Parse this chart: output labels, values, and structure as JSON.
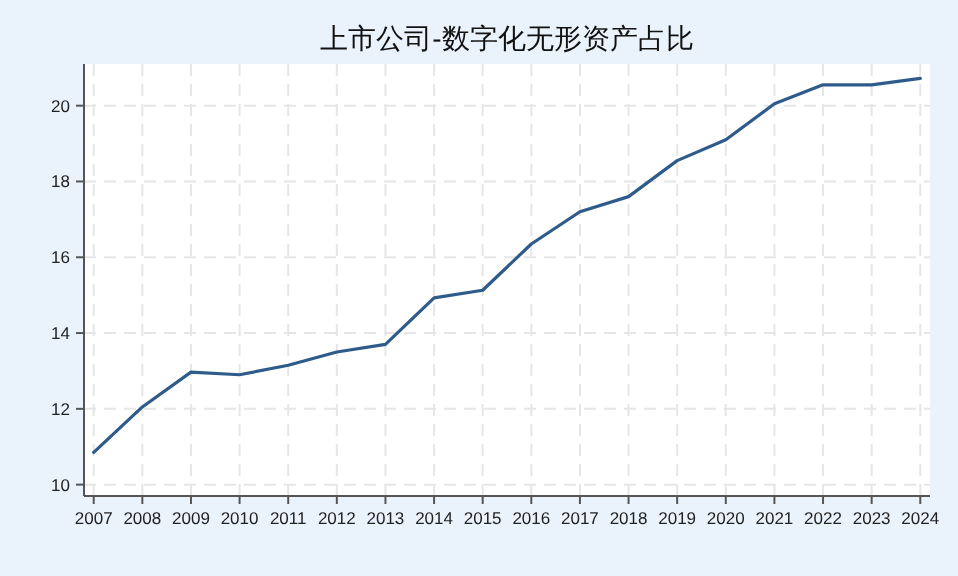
{
  "chart_data": {
    "type": "line",
    "title": "上市公司-数字化无形资产占比",
    "x": [
      2007,
      2008,
      2009,
      2010,
      2011,
      2012,
      2013,
      2014,
      2015,
      2016,
      2017,
      2018,
      2019,
      2020,
      2021,
      2022,
      2023,
      2024
    ],
    "series": [
      {
        "color": "#2e5b8a",
        "values": [
          10.85,
          12.05,
          12.97,
          12.9,
          13.15,
          13.5,
          13.7,
          14.93,
          15.13,
          16.35,
          17.2,
          17.6,
          18.55,
          19.1,
          20.05,
          20.55,
          20.55,
          20.72
        ]
      }
    ],
    "xlim": [
      2006.8,
      2024.2
    ],
    "xticks": [
      2007,
      2008,
      2009,
      2010,
      2011,
      2012,
      2013,
      2014,
      2015,
      2016,
      2017,
      2018,
      2019,
      2020,
      2021,
      2022,
      2023,
      2024
    ],
    "ylim": [
      9.7,
      21.1
    ],
    "yticks": [
      10,
      12,
      14,
      16,
      18,
      20
    ],
    "grid": true,
    "line_style": "solid",
    "marker": "none"
  }
}
